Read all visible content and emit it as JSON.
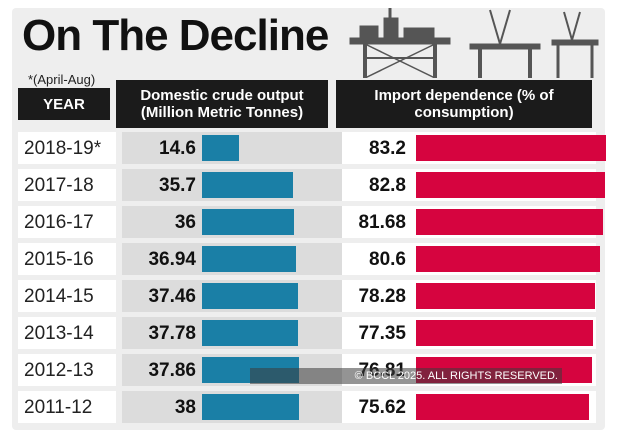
{
  "title": "On The Decline",
  "footnote": "*(April-Aug)",
  "headers": {
    "year": "YEAR",
    "domestic": "Domestic crude output (Million Metric Tonnes)",
    "import": "Import dependence (% of consumption)"
  },
  "watermark": "© BCCL 2025. ALL RIGHTS RESERVED.",
  "colors": {
    "domestic_bar": "#1a7fa6",
    "import_bar": "#d6043f"
  },
  "chart_data": {
    "type": "bar",
    "title": "On The Decline",
    "categories": [
      "2018-19*",
      "2017-18",
      "2016-17",
      "2015-16",
      "2014-15",
      "2013-14",
      "2012-13",
      "2011-12"
    ],
    "series": [
      {
        "name": "Domestic crude output (Million Metric Tonnes)",
        "values": [
          14.6,
          35.7,
          36,
          36.94,
          37.46,
          37.78,
          37.86,
          38
        ]
      },
      {
        "name": "Import dependence (% of consumption)",
        "values": [
          83.2,
          82.8,
          81.68,
          80.6,
          78.28,
          77.35,
          76.81,
          75.62
        ]
      }
    ],
    "labels": {
      "domestic": [
        "14.6",
        "35.7",
        "36",
        "36.94",
        "37.46",
        "37.78",
        "37.86",
        "38"
      ],
      "import": [
        "83.2",
        "82.8",
        "81.68",
        "80.6",
        "78.28",
        "77.35",
        "76.81",
        "75.62"
      ]
    }
  }
}
